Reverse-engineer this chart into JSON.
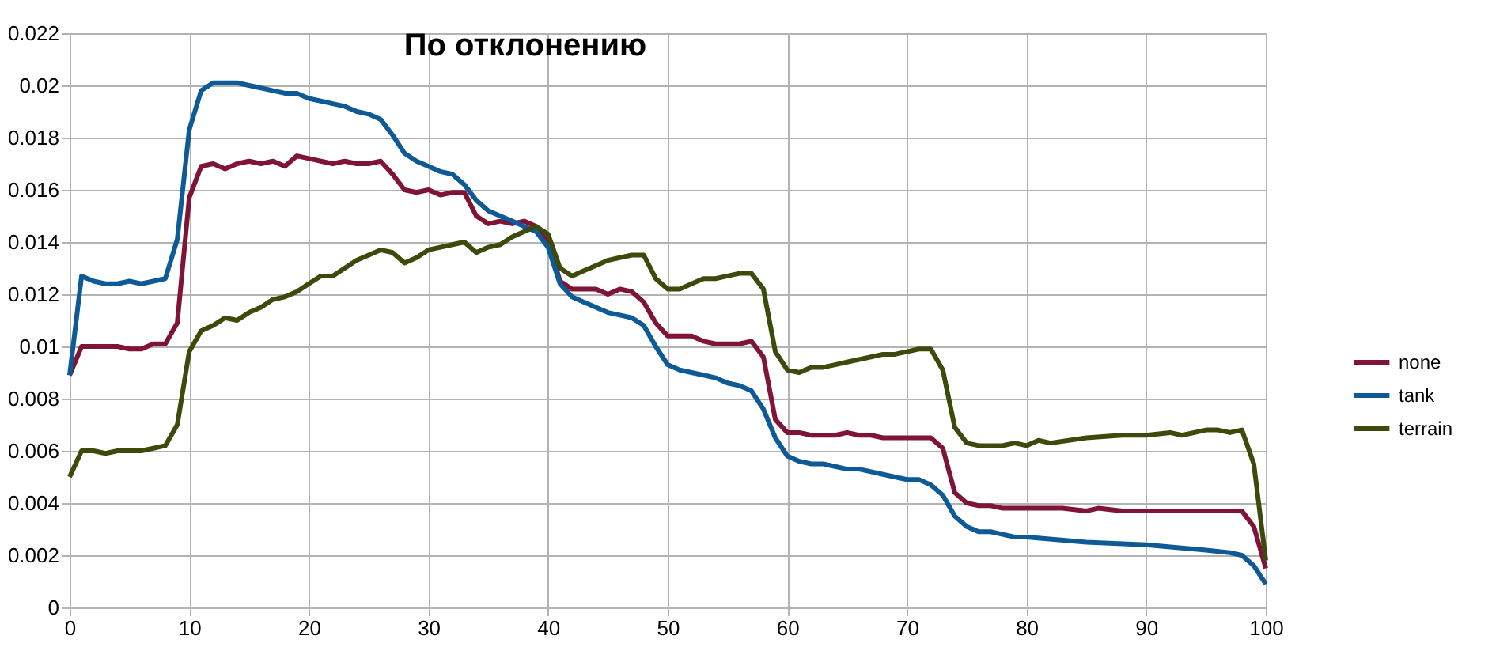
{
  "chart_data": {
    "type": "line",
    "title": "По отклонению",
    "xlim": [
      0,
      100
    ],
    "xticks": [
      0,
      10,
      20,
      30,
      40,
      50,
      60,
      70,
      80,
      90,
      100
    ],
    "ylim": [
      0,
      0.022
    ],
    "yticks": [
      0,
      0.002,
      0.004,
      0.006,
      0.008,
      0.01,
      0.012,
      0.014,
      0.016,
      0.018,
      0.02,
      0.022
    ],
    "grid": true,
    "legend": "right",
    "marker": "none",
    "line_style": "solid",
    "series": [
      {
        "name": "none",
        "color": "#7f1437",
        "x": [
          0,
          1,
          2,
          3,
          4,
          5,
          6,
          7,
          8,
          9,
          10,
          11,
          12,
          13,
          14,
          15,
          16,
          17,
          18,
          19,
          20,
          21,
          22,
          23,
          24,
          25,
          26,
          27,
          28,
          29,
          30,
          31,
          32,
          33,
          34,
          35,
          36,
          37,
          38,
          39,
          40,
          41,
          42,
          43,
          44,
          45,
          46,
          47,
          48,
          49,
          50,
          51,
          52,
          53,
          54,
          55,
          56,
          57,
          58,
          59,
          60,
          61,
          62,
          63,
          64,
          65,
          66,
          67,
          68,
          69,
          70,
          71,
          72,
          73,
          74,
          75,
          76,
          77,
          78,
          80,
          83,
          85,
          86,
          88,
          90,
          95,
          98,
          99,
          100
        ],
        "values": [
          0.0089,
          0.01,
          0.01,
          0.01,
          0.01,
          0.0099,
          0.0099,
          0.0101,
          0.0101,
          0.0109,
          0.0157,
          0.0169,
          0.017,
          0.0168,
          0.017,
          0.0171,
          0.017,
          0.0171,
          0.0169,
          0.0173,
          0.0172,
          0.0171,
          0.017,
          0.0171,
          0.017,
          0.017,
          0.0171,
          0.0166,
          0.016,
          0.0159,
          0.016,
          0.0158,
          0.0159,
          0.0159,
          0.015,
          0.0147,
          0.0148,
          0.0147,
          0.0148,
          0.0146,
          0.014,
          0.0125,
          0.0122,
          0.0122,
          0.0122,
          0.012,
          0.0122,
          0.0121,
          0.0117,
          0.0109,
          0.0104,
          0.0104,
          0.0104,
          0.0102,
          0.0101,
          0.0101,
          0.0101,
          0.0102,
          0.0096,
          0.0072,
          0.0067,
          0.0067,
          0.0066,
          0.0066,
          0.0066,
          0.0067,
          0.0066,
          0.0066,
          0.0065,
          0.0065,
          0.0065,
          0.0065,
          0.0065,
          0.0061,
          0.0044,
          0.004,
          0.0039,
          0.0039,
          0.0038,
          0.0038,
          0.0038,
          0.0037,
          0.0038,
          0.0037,
          0.0037,
          0.0037,
          0.0037,
          0.0031,
          0.0015
        ]
      },
      {
        "name": "tank",
        "color": "#0e5a96",
        "x": [
          0,
          1,
          2,
          3,
          4,
          5,
          6,
          7,
          8,
          9,
          10,
          11,
          12,
          13,
          14,
          15,
          16,
          17,
          18,
          19,
          20,
          21,
          22,
          23,
          24,
          25,
          26,
          27,
          28,
          29,
          30,
          31,
          32,
          33,
          34,
          35,
          36,
          37,
          38,
          39,
          40,
          41,
          42,
          43,
          44,
          45,
          46,
          47,
          48,
          49,
          50,
          51,
          52,
          53,
          54,
          55,
          56,
          57,
          58,
          59,
          60,
          61,
          62,
          63,
          64,
          65,
          66,
          67,
          68,
          69,
          70,
          71,
          72,
          73,
          74,
          75,
          76,
          77,
          78,
          79,
          80,
          85,
          90,
          95,
          97,
          98,
          99,
          100
        ],
        "values": [
          0.0089,
          0.0127,
          0.0125,
          0.0124,
          0.0124,
          0.0125,
          0.0124,
          0.0125,
          0.0126,
          0.0141,
          0.0183,
          0.0198,
          0.0201,
          0.0201,
          0.0201,
          0.02,
          0.0199,
          0.0198,
          0.0197,
          0.0197,
          0.0195,
          0.0194,
          0.0193,
          0.0192,
          0.019,
          0.0189,
          0.0187,
          0.0181,
          0.0174,
          0.0171,
          0.0169,
          0.0167,
          0.0166,
          0.0162,
          0.0156,
          0.0152,
          0.015,
          0.0148,
          0.0146,
          0.0144,
          0.0138,
          0.0124,
          0.0119,
          0.0117,
          0.0115,
          0.0113,
          0.0112,
          0.0111,
          0.0108,
          0.01,
          0.0093,
          0.0091,
          0.009,
          0.0089,
          0.0088,
          0.0086,
          0.0085,
          0.0083,
          0.0076,
          0.0065,
          0.0058,
          0.0056,
          0.0055,
          0.0055,
          0.0054,
          0.0053,
          0.0053,
          0.0052,
          0.0051,
          0.005,
          0.0049,
          0.0049,
          0.0047,
          0.0043,
          0.0035,
          0.0031,
          0.0029,
          0.0029,
          0.0028,
          0.0027,
          0.0027,
          0.0025,
          0.0024,
          0.0022,
          0.0021,
          0.002,
          0.0016,
          0.0009
        ]
      },
      {
        "name": "terrain",
        "color": "#3c4a0c",
        "x": [
          0,
          1,
          2,
          3,
          4,
          5,
          6,
          7,
          8,
          9,
          10,
          11,
          12,
          13,
          14,
          15,
          16,
          17,
          18,
          19,
          20,
          21,
          22,
          23,
          24,
          25,
          26,
          27,
          28,
          29,
          30,
          31,
          32,
          33,
          34,
          35,
          36,
          37,
          38,
          39,
          40,
          41,
          42,
          43,
          44,
          45,
          46,
          47,
          48,
          49,
          50,
          51,
          52,
          53,
          54,
          55,
          56,
          57,
          58,
          59,
          60,
          61,
          62,
          63,
          64,
          65,
          66,
          67,
          68,
          69,
          70,
          71,
          72,
          73,
          74,
          75,
          76,
          77,
          78,
          79,
          80,
          81,
          82,
          85,
          88,
          90,
          92,
          93,
          95,
          96,
          97,
          98,
          99,
          100
        ],
        "values": [
          0.005,
          0.006,
          0.006,
          0.0059,
          0.006,
          0.006,
          0.006,
          0.0061,
          0.0062,
          0.007,
          0.0098,
          0.0106,
          0.0108,
          0.0111,
          0.011,
          0.0113,
          0.0115,
          0.0118,
          0.0119,
          0.0121,
          0.0124,
          0.0127,
          0.0127,
          0.013,
          0.0133,
          0.0135,
          0.0137,
          0.0136,
          0.0132,
          0.0134,
          0.0137,
          0.0138,
          0.0139,
          0.014,
          0.0136,
          0.0138,
          0.0139,
          0.0142,
          0.0144,
          0.0146,
          0.0143,
          0.013,
          0.0127,
          0.0129,
          0.0131,
          0.0133,
          0.0134,
          0.0135,
          0.0135,
          0.0126,
          0.0122,
          0.0122,
          0.0124,
          0.0126,
          0.0126,
          0.0127,
          0.0128,
          0.0128,
          0.0122,
          0.0098,
          0.0091,
          0.009,
          0.0092,
          0.0092,
          0.0093,
          0.0094,
          0.0095,
          0.0096,
          0.0097,
          0.0097,
          0.0098,
          0.0099,
          0.0099,
          0.0091,
          0.0069,
          0.0063,
          0.0062,
          0.0062,
          0.0062,
          0.0063,
          0.0062,
          0.0064,
          0.0063,
          0.0065,
          0.0066,
          0.0066,
          0.0067,
          0.0066,
          0.0068,
          0.0068,
          0.0067,
          0.0068,
          0.0055,
          0.0018
        ]
      }
    ]
  }
}
